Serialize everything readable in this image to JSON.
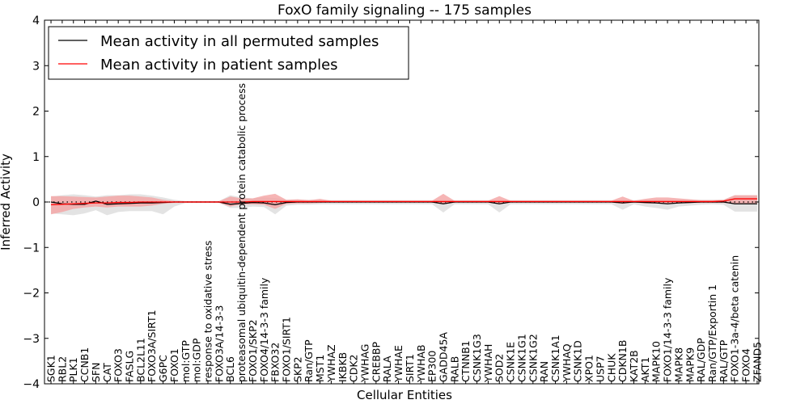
{
  "chart_data": {
    "type": "line",
    "title": "FoxO family signaling -- 175 samples",
    "xlabel": "Cellular Entities",
    "ylabel": "Inferred Activity",
    "ylim": [
      -4,
      4
    ],
    "yticks": [
      -4,
      -3,
      -2,
      -1,
      0,
      1,
      2,
      3,
      4
    ],
    "legend_position": "top-left",
    "categories": [
      "SGK1",
      "RBL2",
      "PLK1",
      "CCNB1",
      "SFN",
      "CAT",
      "FOXO3",
      "FASLG",
      "BCL2L11",
      "FOXO3A/SIRT1",
      "G6PC",
      "FOXO1",
      "mol:GTP",
      "mol:GDP",
      "response to oxidative stress",
      "FOXO3A/14-3-3",
      "BCL6",
      "proteasomal ubiquitin-dependent protein catabolic process",
      "FOXO1/SKP2",
      "FOXO4/14-3-3 family",
      "FBXO32",
      "FOXO1/SIRT1",
      "SKP2",
      "Ran/GTP",
      "MST1",
      "YWHAZ",
      "IKBKB",
      "CDK2",
      "YWHAG",
      "CREBBP",
      "RALA",
      "YWHAE",
      "SIRT1",
      "YWHAB",
      "EP300",
      "GADD45A",
      "RALB",
      "CTNNB1",
      "CSNK1G3",
      "YWHAH",
      "SOD2",
      "CSNK1E",
      "CSNK1G1",
      "CSNK1G2",
      "RAN",
      "CSNK1A1",
      "YWHAQ",
      "CSNK1D",
      "XPO1",
      "USP7",
      "CHUK",
      "CDKN1B",
      "KAT2B",
      "AKT1",
      "MAPK10",
      "FOXO1/14-3-3 family",
      "MAPK8",
      "MAPK9",
      "RAL/GDP",
      "Ran/GTP/Exportin 1",
      "RAL/GTP",
      "FOXO1-3a-4/beta catenin",
      "FOXO4",
      "ZFAND5"
    ],
    "series": [
      {
        "name": "Mean activity in all permuted samples",
        "color": "#000000",
        "band_color": "#d9d9d9",
        "values": [
          0,
          -0.04,
          -0.05,
          -0.05,
          0.02,
          -0.05,
          -0.04,
          -0.03,
          -0.02,
          -0.02,
          -0.01,
          0,
          0,
          0,
          0,
          0,
          -0.05,
          -0.03,
          -0.01,
          -0.02,
          -0.06,
          -0.01,
          0,
          0,
          0,
          0,
          0,
          0,
          0,
          0,
          0,
          0,
          0,
          0,
          0,
          -0.04,
          0,
          0,
          0,
          0,
          -0.04,
          0,
          0,
          0,
          0,
          0,
          0,
          0,
          0,
          0,
          0,
          -0.02,
          0,
          -0.01,
          -0.02,
          -0.04,
          -0.02,
          -0.01,
          0,
          0,
          0,
          -0.04,
          -0.04,
          -0.04
        ],
        "lower": [
          -0.25,
          -0.27,
          -0.29,
          -0.25,
          -0.18,
          -0.29,
          -0.22,
          -0.2,
          -0.2,
          -0.2,
          -0.27,
          -0.1,
          -0.02,
          -0.02,
          -0.02,
          -0.02,
          -0.13,
          -0.13,
          -0.1,
          -0.11,
          -0.27,
          -0.08,
          -0.06,
          -0.06,
          -0.05,
          -0.05,
          -0.05,
          -0.05,
          -0.05,
          -0.05,
          -0.05,
          -0.05,
          -0.05,
          -0.05,
          -0.05,
          -0.23,
          -0.05,
          -0.05,
          -0.05,
          -0.05,
          -0.23,
          -0.05,
          -0.05,
          -0.05,
          -0.05,
          -0.05,
          -0.05,
          -0.05,
          -0.05,
          -0.05,
          -0.05,
          -0.17,
          -0.05,
          -0.1,
          -0.13,
          -0.17,
          -0.1,
          -0.08,
          -0.06,
          -0.05,
          -0.06,
          -0.21,
          -0.21,
          -0.21
        ],
        "upper": [
          0.12,
          0.15,
          0.17,
          0.15,
          0.12,
          0.15,
          0.15,
          0.17,
          0.17,
          0.14,
          0.1,
          0.05,
          0.02,
          0.02,
          0.02,
          0.02,
          0.15,
          0.1,
          0.08,
          0.1,
          0.09,
          0.05,
          0.05,
          0.05,
          0.05,
          0.04,
          0.04,
          0.04,
          0.04,
          0.04,
          0.04,
          0.04,
          0.04,
          0.04,
          0.04,
          0.05,
          0.04,
          0.04,
          0.04,
          0.04,
          0.05,
          0.04,
          0.04,
          0.04,
          0.04,
          0.04,
          0.04,
          0.04,
          0.04,
          0.04,
          0.04,
          0.05,
          0.04,
          0.05,
          0.05,
          0.05,
          0.05,
          0.05,
          0.05,
          0.05,
          0.05,
          0.15,
          0.15,
          0.15
        ]
      },
      {
        "name": "Mean activity in patient samples",
        "color": "#ff0000",
        "band_color": "#f4a3a3",
        "values": [
          -0.06,
          -0.05,
          -0.04,
          -0.03,
          -0.02,
          -0.02,
          -0.01,
          -0.01,
          0,
          0,
          0,
          0,
          0,
          0,
          0,
          0,
          0,
          0,
          0.01,
          0.01,
          0.01,
          0.01,
          0.01,
          0.01,
          0.01,
          0.01,
          0.01,
          0.01,
          0.01,
          0.01,
          0.01,
          0.01,
          0.01,
          0.01,
          0.01,
          0.01,
          0.01,
          0.01,
          0.01,
          0.01,
          0.01,
          0.01,
          0.01,
          0.01,
          0.01,
          0.01,
          0.01,
          0.01,
          0.01,
          0.01,
          0.01,
          0.01,
          0.01,
          0.01,
          0.01,
          0.01,
          0.01,
          0.01,
          0.01,
          0.01,
          0.02,
          0.07,
          0.07,
          0.07
        ],
        "lower": [
          -0.27,
          -0.22,
          -0.15,
          -0.12,
          -0.1,
          -0.12,
          -0.1,
          -0.1,
          -0.1,
          -0.08,
          -0.04,
          -0.02,
          -0.02,
          -0.02,
          -0.02,
          -0.02,
          -0.1,
          -0.05,
          -0.05,
          -0.06,
          -0.15,
          -0.04,
          -0.03,
          -0.03,
          -0.02,
          -0.01,
          -0.01,
          -0.01,
          -0.01,
          -0.01,
          -0.01,
          -0.01,
          -0.01,
          -0.01,
          -0.01,
          -0.05,
          -0.01,
          -0.01,
          -0.01,
          -0.01,
          -0.05,
          -0.01,
          -0.01,
          -0.01,
          -0.01,
          -0.01,
          -0.01,
          -0.01,
          -0.01,
          -0.01,
          -0.01,
          -0.04,
          -0.01,
          -0.03,
          -0.03,
          -0.04,
          -0.03,
          -0.02,
          -0.02,
          -0.02,
          -0.02,
          -0.03,
          -0.03,
          -0.03
        ],
        "upper": [
          0.13,
          0.13,
          0.12,
          0.11,
          0.1,
          0.12,
          0.14,
          0.14,
          0.12,
          0.1,
          0.05,
          0.02,
          0.02,
          0.02,
          0.02,
          0.02,
          0.12,
          0.08,
          0.08,
          0.14,
          0.18,
          0.05,
          0.06,
          0.04,
          0.07,
          0.03,
          0.03,
          0.03,
          0.03,
          0.03,
          0.03,
          0.03,
          0.03,
          0.03,
          0.03,
          0.18,
          0.03,
          0.03,
          0.03,
          0.03,
          0.13,
          0.03,
          0.03,
          0.03,
          0.03,
          0.03,
          0.03,
          0.03,
          0.03,
          0.03,
          0.03,
          0.12,
          0.03,
          0.07,
          0.1,
          0.1,
          0.08,
          0.06,
          0.04,
          0.04,
          0.05,
          0.15,
          0.15,
          0.15
        ]
      }
    ]
  }
}
